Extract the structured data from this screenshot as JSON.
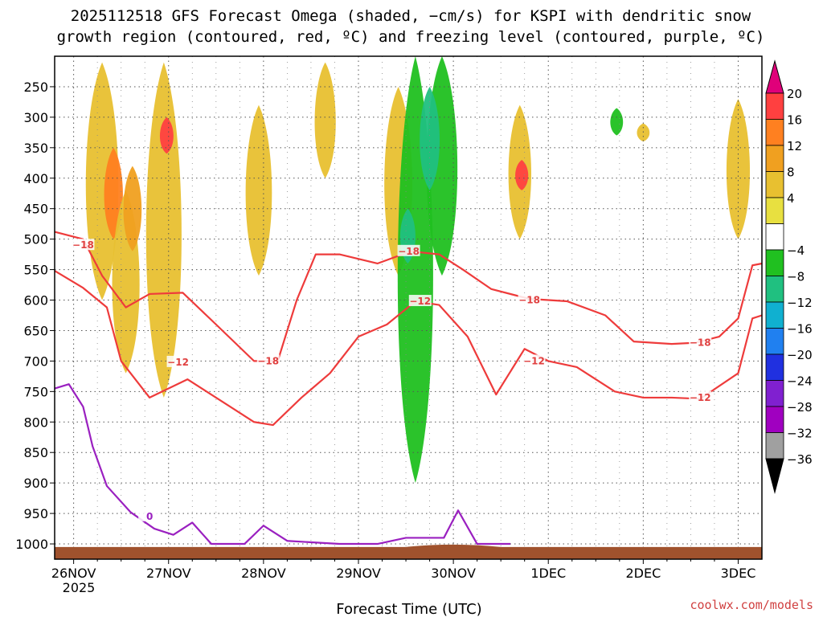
{
  "chart_data": {
    "type": "heatmap",
    "title_line1": "2025112518 GFS Forecast Omega (shaded, −cm/s) for KSPI with dendritic snow",
    "title_line2": "growth region (contoured, red, ºC) and freezing level (contoured, purple, ºC)",
    "xlabel": "Forecast Time (UTC)",
    "credit": "coolwx.com/models",
    "x_ticks": [
      "26NOV",
      "27NOV",
      "28NOV",
      "29NOV",
      "30NOV",
      "1DEC",
      "2DEC",
      "3DEC"
    ],
    "x_year": "2025",
    "x_range_days": [
      25.8,
      33.25
    ],
    "y_ticks": [
      "250",
      "300",
      "350",
      "400",
      "450",
      "500",
      "550",
      "600",
      "650",
      "700",
      "750",
      "800",
      "850",
      "900",
      "950",
      "1000"
    ],
    "y_range_hpa": [
      200,
      1025
    ],
    "colorbar": {
      "labels": [
        "20",
        "16",
        "12",
        "8",
        "4",
        "−4",
        "−8",
        "−12",
        "−16",
        "−20",
        "−24",
        "−28",
        "−32",
        "−36"
      ],
      "colors": [
        "#ff4040",
        "#ff8020",
        "#f0a020",
        "#e8c030",
        "#e8e040",
        "#ffffff",
        "#20c020",
        "#20c080",
        "#10b0d0",
        "#2080f0",
        "#2030e0",
        "#8020d0",
        "#a000c0",
        "#a0a0a0"
      ],
      "top_triangle_color": "#e0007a",
      "bottom_triangle_color": "#000000"
    },
    "omega_regions": [
      {
        "day": 26.3,
        "p_top": 210,
        "p_bot": 600,
        "value": 4
      },
      {
        "day": 26.42,
        "p_top": 350,
        "p_bot": 500,
        "value": 12
      },
      {
        "day": 26.55,
        "p_top": 420,
        "p_bot": 720,
        "value": 4
      },
      {
        "day": 26.95,
        "p_top": 210,
        "p_bot": 760,
        "value": 4
      },
      {
        "day": 26.98,
        "p_top": 300,
        "p_bot": 360,
        "value": 16
      },
      {
        "day": 26.62,
        "p_top": 380,
        "p_bot": 520,
        "value": 8
      },
      {
        "day": 27.95,
        "p_top": 280,
        "p_bot": 560,
        "value": 4
      },
      {
        "day": 28.65,
        "p_top": 210,
        "p_bot": 400,
        "value": 4
      },
      {
        "day": 29.42,
        "p_top": 250,
        "p_bot": 560,
        "value": 4
      },
      {
        "day": 29.6,
        "p_top": 200,
        "p_bot": 900,
        "value": -4
      },
      {
        "day": 29.88,
        "p_top": 200,
        "p_bot": 560,
        "value": -4
      },
      {
        "day": 29.75,
        "p_top": 250,
        "p_bot": 420,
        "value": -12
      },
      {
        "day": 29.52,
        "p_top": 450,
        "p_bot": 540,
        "value": -12
      },
      {
        "day": 30.7,
        "p_top": 280,
        "p_bot": 500,
        "value": 4
      },
      {
        "day": 30.72,
        "p_top": 370,
        "p_bot": 420,
        "value": 16
      },
      {
        "day": 31.72,
        "p_top": 285,
        "p_bot": 330,
        "value": -4
      },
      {
        "day": 33.0,
        "p_top": 270,
        "p_bot": 500,
        "value": 4
      },
      {
        "day": 32.0,
        "p_top": 310,
        "p_bot": 340,
        "value": 4
      }
    ],
    "contours": {
      "minus18": {
        "label": "−18",
        "labels_at": [
          [
            26.1,
            510
          ],
          [
            28.05,
            700
          ],
          [
            29.53,
            520
          ],
          [
            30.8,
            600
          ],
          [
            32.6,
            670
          ]
        ],
        "points": [
          [
            25.8,
            488
          ],
          [
            26.1,
            500
          ],
          [
            26.3,
            560
          ],
          [
            26.55,
            612
          ],
          [
            26.8,
            590
          ],
          [
            27.15,
            588
          ],
          [
            27.5,
            640
          ],
          [
            27.9,
            700
          ],
          [
            28.15,
            700
          ],
          [
            28.35,
            600
          ],
          [
            28.55,
            525
          ],
          [
            28.8,
            525
          ],
          [
            29.2,
            540
          ],
          [
            29.55,
            520
          ],
          [
            29.85,
            525
          ],
          [
            30.1,
            550
          ],
          [
            30.4,
            582
          ],
          [
            30.8,
            598
          ],
          [
            31.2,
            602
          ],
          [
            31.6,
            625
          ],
          [
            31.9,
            668
          ],
          [
            32.3,
            672
          ],
          [
            32.55,
            670
          ],
          [
            32.8,
            660
          ],
          [
            33.0,
            630
          ],
          [
            33.15,
            543
          ],
          [
            33.25,
            540
          ]
        ]
      },
      "minus12": {
        "label": "−12",
        "labels_at": [
          [
            27.1,
            702
          ],
          [
            29.65,
            602
          ],
          [
            30.85,
            700
          ],
          [
            32.6,
            760
          ]
        ],
        "points": [
          [
            25.8,
            552
          ],
          [
            26.1,
            580
          ],
          [
            26.35,
            612
          ],
          [
            26.5,
            700
          ],
          [
            26.8,
            760
          ],
          [
            27.2,
            730
          ],
          [
            27.5,
            760
          ],
          [
            27.9,
            800
          ],
          [
            28.1,
            805
          ],
          [
            28.4,
            760
          ],
          [
            28.7,
            720
          ],
          [
            29.0,
            660
          ],
          [
            29.3,
            640
          ],
          [
            29.6,
            602
          ],
          [
            29.85,
            608
          ],
          [
            30.15,
            660
          ],
          [
            30.45,
            755
          ],
          [
            30.75,
            680
          ],
          [
            31.0,
            700
          ],
          [
            31.3,
            710
          ],
          [
            31.7,
            750
          ],
          [
            32.0,
            760
          ],
          [
            32.3,
            760
          ],
          [
            32.6,
            762
          ],
          [
            33.0,
            720
          ],
          [
            33.15,
            630
          ],
          [
            33.25,
            625
          ]
        ]
      },
      "freezing": {
        "label": "0",
        "labels_at": [
          [
            26.8,
            955
          ]
        ],
        "points": [
          [
            25.8,
            745
          ],
          [
            25.95,
            738
          ],
          [
            26.1,
            775
          ],
          [
            26.2,
            840
          ],
          [
            26.35,
            905
          ],
          [
            26.6,
            948
          ],
          [
            26.85,
            975
          ],
          [
            27.05,
            985
          ],
          [
            27.25,
            965
          ],
          [
            27.45,
            1000
          ],
          [
            27.8,
            1000
          ],
          [
            28.0,
            970
          ],
          [
            28.25,
            995
          ],
          [
            28.8,
            1000
          ],
          [
            29.2,
            1000
          ],
          [
            29.5,
            990
          ],
          [
            29.9,
            990
          ],
          [
            30.05,
            945
          ],
          [
            30.25,
            1000
          ],
          [
            30.6,
            1000
          ]
        ]
      }
    }
  }
}
